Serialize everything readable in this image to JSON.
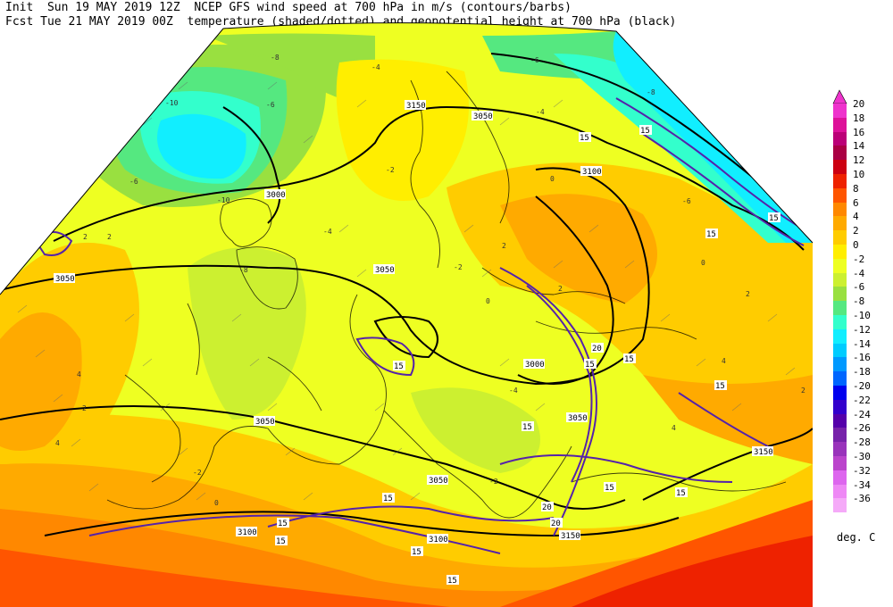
{
  "header": {
    "line1": "Init  Sun 19 MAY 2019 12Z  NCEP GFS wind speed at 700 hPa in m/s (contours/barbs)",
    "line2": "Fcst Tue 21 MAY 2019 00Z  temperature (shaded/dotted) and geopotential height at 700 hPa (black)"
  },
  "colorbar": {
    "units": "deg. C",
    "levels": [
      {
        "label": "20",
        "color": "#ee33cc"
      },
      {
        "label": "18",
        "color": "#dd1199"
      },
      {
        "label": "16",
        "color": "#bb0077"
      },
      {
        "label": "14",
        "color": "#aa0044"
      },
      {
        "label": "12",
        "color": "#cc0011"
      },
      {
        "label": "10",
        "color": "#ee2200"
      },
      {
        "label": "8",
        "color": "#ff5500"
      },
      {
        "label": "6",
        "color": "#ff8800"
      },
      {
        "label": "4",
        "color": "#ffaa00"
      },
      {
        "label": "2",
        "color": "#ffcc00"
      },
      {
        "label": "0",
        "color": "#ffee00"
      },
      {
        "label": "-2",
        "color": "#eeff22"
      },
      {
        "label": "-4",
        "color": "#ccf030"
      },
      {
        "label": "-6",
        "color": "#99e040"
      },
      {
        "label": "-8",
        "color": "#55e880"
      },
      {
        "label": "-10",
        "color": "#33ffcc"
      },
      {
        "label": "-12",
        "color": "#11eeff"
      },
      {
        "label": "-14",
        "color": "#00ccff"
      },
      {
        "label": "-16",
        "color": "#0099ff"
      },
      {
        "label": "-18",
        "color": "#0066ff"
      },
      {
        "label": "-20",
        "color": "#0000ee"
      },
      {
        "label": "-22",
        "color": "#3300cc"
      },
      {
        "label": "-24",
        "color": "#5500aa"
      },
      {
        "label": "-26",
        "color": "#7722aa"
      },
      {
        "label": "-28",
        "color": "#9933bb"
      },
      {
        "label": "-30",
        "color": "#bb44cc"
      },
      {
        "label": "-32",
        "color": "#dd66ee"
      },
      {
        "label": "-34",
        "color": "#ee88f5"
      },
      {
        "label": "-36",
        "color": "#f5aaf8"
      }
    ]
  },
  "map": {
    "height_labels": [
      "3050",
      "3000",
      "3150",
      "3050",
      "3100",
      "3050",
      "3000",
      "3050",
      "3050",
      "3100",
      "3100",
      "3150",
      "3150",
      "3050"
    ],
    "wind_labels": [
      "15",
      "15",
      "15",
      "15",
      "20",
      "15",
      "15",
      "15",
      "15",
      "15",
      "15",
      "15",
      "15",
      "20",
      "15",
      "15",
      "15",
      "15",
      "20"
    ],
    "temp_labels": [
      "-8",
      "-10",
      "-4",
      "-6",
      "-10",
      "-8",
      "-6",
      "-4",
      "-2",
      "-4",
      "-6",
      "2",
      "4",
      "-2",
      "0",
      "-2",
      "-4",
      "2",
      "-2",
      "2",
      "4",
      "4",
      "0",
      "2",
      "-8",
      "-6",
      "2",
      "2",
      "0",
      "0",
      "2",
      "4"
    ]
  }
}
